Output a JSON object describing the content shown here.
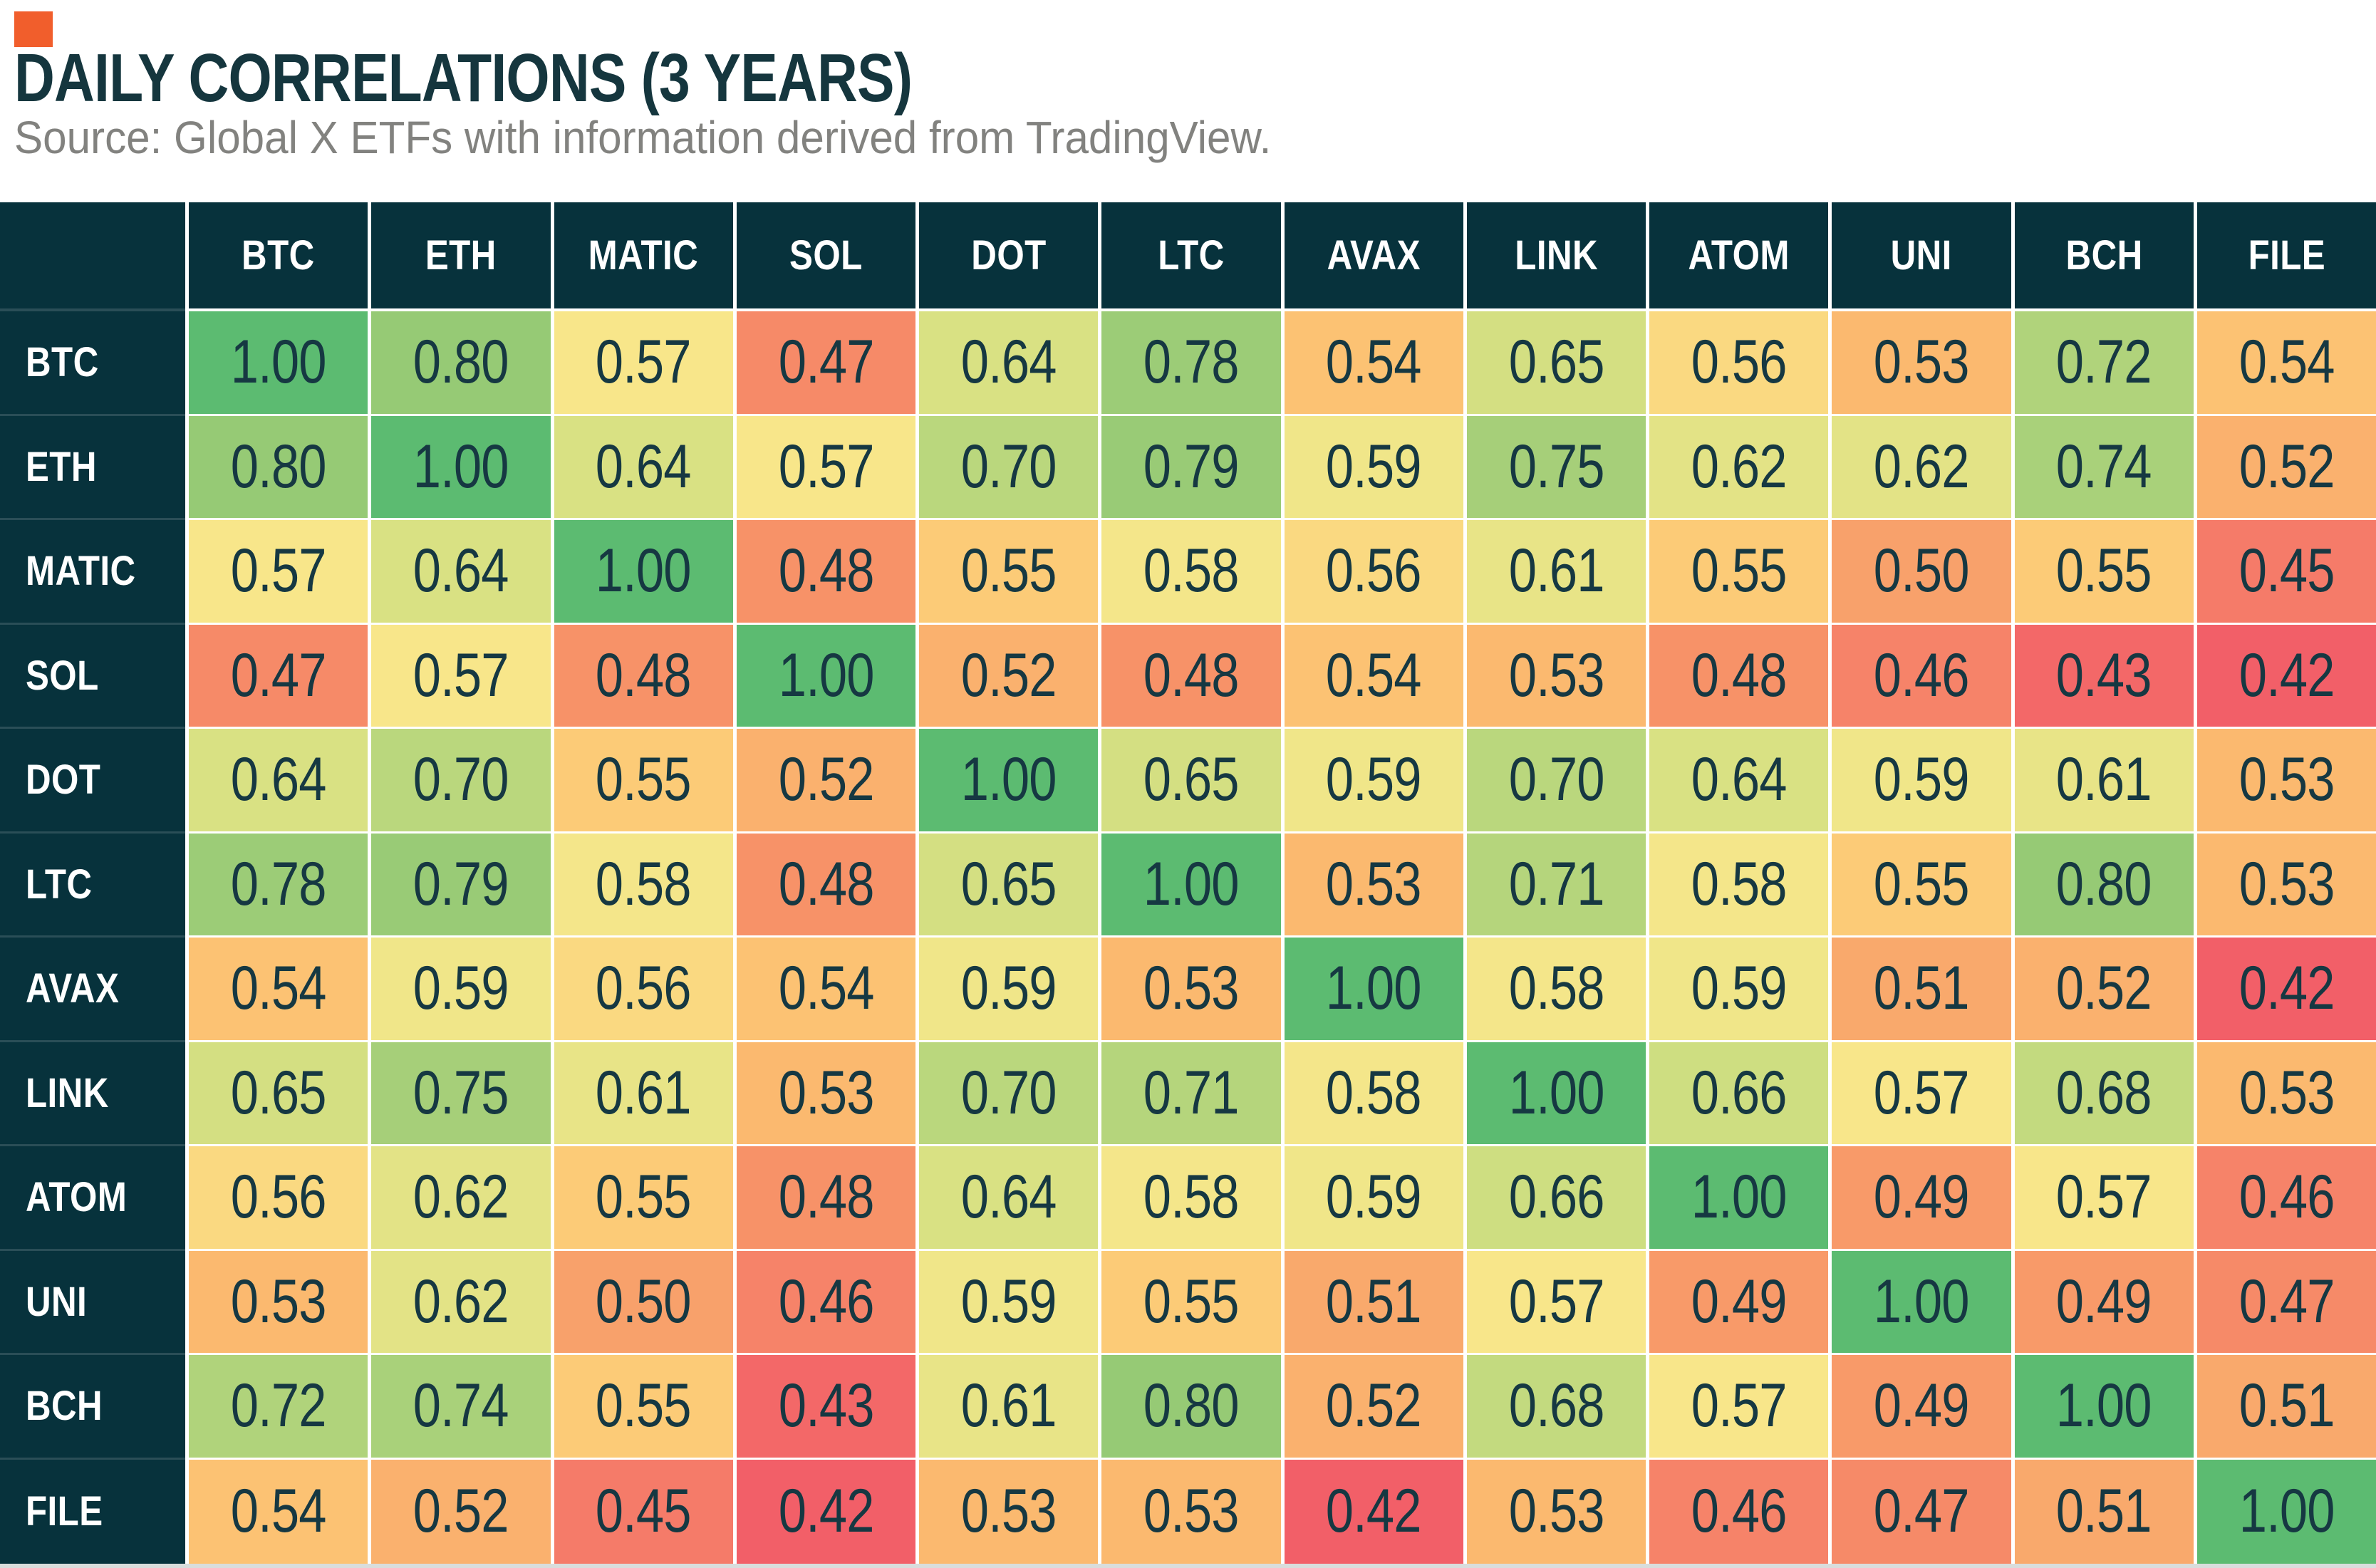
{
  "page": {
    "accent_bar_color": "#F15E2C",
    "title": "DAILY CORRELATIONS (3 YEARS)",
    "title_color": "#15363E",
    "source": "Source: Global X ETFs with information derived from TradingView.",
    "source_color": "#82827F"
  },
  "chart_data": {
    "type": "heatmap",
    "title": "DAILY CORRELATIONS (3 YEARS)",
    "source": "Source: Global X ETFs with information derived from TradingView.",
    "labels": [
      "BTC",
      "ETH",
      "MATIC",
      "SOL",
      "DOT",
      "LTC",
      "AVAX",
      "LINK",
      "ATOM",
      "UNI",
      "BCH",
      "FILE"
    ],
    "matrix": [
      [
        1.0,
        0.8,
        0.57,
        0.47,
        0.64,
        0.78,
        0.54,
        0.65,
        0.56,
        0.53,
        0.72,
        0.54
      ],
      [
        0.8,
        1.0,
        0.64,
        0.57,
        0.7,
        0.79,
        0.59,
        0.75,
        0.62,
        0.62,
        0.74,
        0.52
      ],
      [
        0.57,
        0.64,
        1.0,
        0.48,
        0.55,
        0.58,
        0.56,
        0.61,
        0.55,
        0.5,
        0.55,
        0.45
      ],
      [
        0.47,
        0.57,
        0.48,
        1.0,
        0.52,
        0.48,
        0.54,
        0.53,
        0.48,
        0.46,
        0.43,
        0.42
      ],
      [
        0.64,
        0.7,
        0.55,
        0.52,
        1.0,
        0.65,
        0.59,
        0.7,
        0.64,
        0.59,
        0.61,
        0.53
      ],
      [
        0.78,
        0.79,
        0.58,
        0.48,
        0.65,
        1.0,
        0.53,
        0.71,
        0.58,
        0.55,
        0.8,
        0.53
      ],
      [
        0.54,
        0.59,
        0.56,
        0.54,
        0.59,
        0.53,
        1.0,
        0.58,
        0.59,
        0.51,
        0.52,
        0.42
      ],
      [
        0.65,
        0.75,
        0.61,
        0.53,
        0.7,
        0.71,
        0.58,
        1.0,
        0.66,
        0.57,
        0.68,
        0.53
      ],
      [
        0.56,
        0.62,
        0.55,
        0.48,
        0.64,
        0.58,
        0.59,
        0.66,
        1.0,
        0.49,
        0.57,
        0.46
      ],
      [
        0.53,
        0.62,
        0.5,
        0.46,
        0.59,
        0.55,
        0.51,
        0.57,
        0.49,
        1.0,
        0.49,
        0.47
      ],
      [
        0.72,
        0.74,
        0.55,
        0.43,
        0.61,
        0.8,
        0.52,
        0.68,
        0.57,
        0.49,
        1.0,
        0.51
      ],
      [
        0.54,
        0.52,
        0.45,
        0.42,
        0.53,
        0.53,
        0.42,
        0.53,
        0.46,
        0.47,
        0.51,
        1.0
      ]
    ],
    "value_decimals": 2,
    "value_range": [
      0.42,
      1.0
    ],
    "colormap": {
      "stops": [
        {
          "value": 0.42,
          "color": "#F25F68"
        },
        {
          "value": 0.45,
          "color": "#F57B69"
        },
        {
          "value": 0.48,
          "color": "#F79268"
        },
        {
          "value": 0.51,
          "color": "#F9A96C"
        },
        {
          "value": 0.53,
          "color": "#FBB96F"
        },
        {
          "value": 0.55,
          "color": "#FCCB77"
        },
        {
          "value": 0.57,
          "color": "#F8E68A"
        },
        {
          "value": 0.59,
          "color": "#F0E689"
        },
        {
          "value": 0.61,
          "color": "#E8E487"
        },
        {
          "value": 0.64,
          "color": "#D9E183"
        },
        {
          "value": 0.68,
          "color": "#C3DA7F"
        },
        {
          "value": 0.72,
          "color": "#B0D37B"
        },
        {
          "value": 0.76,
          "color": "#A2CE78"
        },
        {
          "value": 0.8,
          "color": "#96CA75"
        },
        {
          "value": 1.0,
          "color": "#5CBB71"
        }
      ]
    },
    "colors": {
      "header_bg": "#07323C",
      "header_text": "#FFFFFF",
      "cell_text": "#163842",
      "grid": "#FFFFFF"
    },
    "legend": "none",
    "grid": true
  }
}
